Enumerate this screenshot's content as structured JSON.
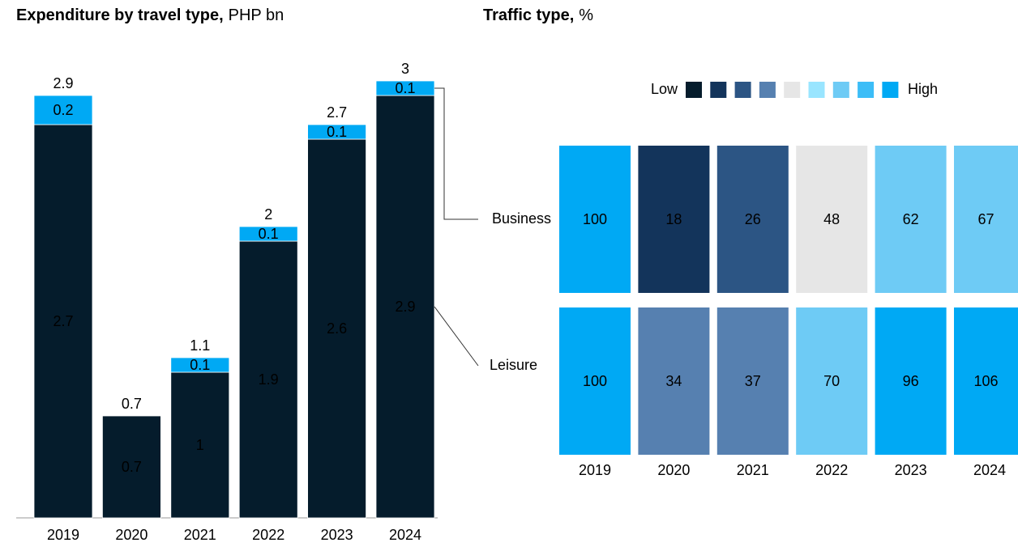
{
  "chart_data": [
    {
      "type": "stacked_bar",
      "title": "Expenditure by travel type,",
      "units": "PHP bn",
      "categories": [
        "2019",
        "2020",
        "2021",
        "2022",
        "2023",
        "2024"
      ],
      "series": [
        {
          "name": "Leisure",
          "color": "#051c2c",
          "values": [
            2.7,
            0.7,
            1.0,
            1.9,
            2.6,
            2.9
          ]
        },
        {
          "name": "Business",
          "color": "#00a9f4",
          "values": [
            0.2,
            null,
            0.1,
            0.1,
            0.1,
            0.1
          ]
        }
      ],
      "totals": [
        2.9,
        0.7,
        1.1,
        2.0,
        2.7,
        3.0
      ],
      "ylim": [
        0,
        3.0
      ]
    },
    {
      "type": "heatmap",
      "title": "Traffic type,",
      "units": "%",
      "categories": [
        "2019",
        "2020",
        "2021",
        "2022",
        "2023",
        "2024"
      ],
      "values": [
        [
          100,
          18,
          26,
          48,
          62,
          67
        ],
        [
          100,
          34,
          37,
          70,
          96,
          106
        ]
      ],
      "colors": [
        [
          "#00a9f4",
          "#13345b",
          "#2c5584",
          "#e6e6e6",
          "#6ecbf5",
          "#6ecbf5"
        ],
        [
          "#00a9f4",
          "#5680b0",
          "#5680b0",
          "#6ecbf5",
          "#00a9f4",
          "#00a9f4"
        ]
      ],
      "legend_low": "Low",
      "legend_high": "High",
      "legend_colors": [
        "#051c2c",
        "#13345b",
        "#2c5584",
        "#5680b0",
        "#e6e6e6",
        "#99e5ff",
        "#6ecbf5",
        "#3cbdf7",
        "#00a9f4"
      ]
    }
  ]
}
